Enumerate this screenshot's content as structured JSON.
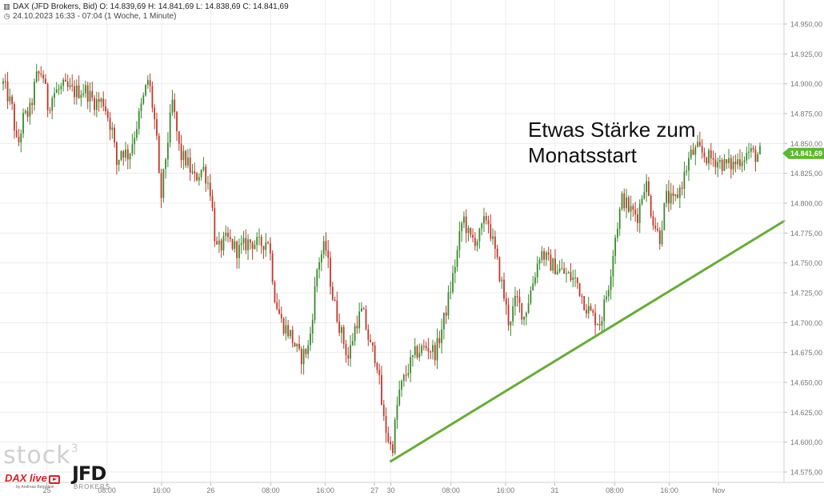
{
  "header": {
    "line1": "DAX (JFD Brokers, Bid)  O: 14.839,69  H: 14.841,69  L: 14.838,69  C: 14.841,69",
    "line2": "24.10.2023 16:33 - 07:04  (1 Woche, 1 Minute)",
    "line1_icon": "candlestick-icon",
    "line2_icon": "clock-icon"
  },
  "annotation": {
    "line1": "Etwas Stärke zum",
    "line2": "Monatsstart"
  },
  "branding": {
    "stock3": "stock",
    "stock3_sup": "3",
    "daxlive": "DAX live",
    "daxlive_sub": "by Andreas Bernstein",
    "jfd": "JFD",
    "jfd_sub": "BROKERS"
  },
  "colors": {
    "up": "#3a8a2e",
    "down": "#c0392b",
    "trendline": "#6aaa3a",
    "price_badge": "#5cb82e",
    "grid": "#ececec"
  },
  "chart_data": {
    "type": "candlestick",
    "title": "DAX (JFD Brokers, Bid)",
    "interval": "1 Minute",
    "period": "1 Woche",
    "last_price": "14.841,69",
    "ylim": [
      14570,
      14960
    ],
    "y_ticks": [
      {
        "value": 14575,
        "label": "14.575,00"
      },
      {
        "value": 14600,
        "label": "14.600,00"
      },
      {
        "value": 14625,
        "label": "14.625,00"
      },
      {
        "value": 14650,
        "label": "14.650,00"
      },
      {
        "value": 14675,
        "label": "14.675,00"
      },
      {
        "value": 14700,
        "label": "14.700,00"
      },
      {
        "value": 14725,
        "label": "14.725,00"
      },
      {
        "value": 14750,
        "label": "14.750,00"
      },
      {
        "value": 14775,
        "label": "14.775,00"
      },
      {
        "value": 14800,
        "label": "14.800,00"
      },
      {
        "value": 14825,
        "label": "14.825,00"
      },
      {
        "value": 14850,
        "label": "14.850,00"
      },
      {
        "value": 14875,
        "label": "14.875,00"
      },
      {
        "value": 14900,
        "label": "14.900,00"
      },
      {
        "value": 14925,
        "label": "14.925,00"
      },
      {
        "value": 14950,
        "label": "14.950,00"
      }
    ],
    "x_ticks": [
      {
        "t": 4,
        "label": "25"
      },
      {
        "t": 9.5,
        "label": "08:00"
      },
      {
        "t": 14.5,
        "label": "16:00"
      },
      {
        "t": 19,
        "label": "26"
      },
      {
        "t": 24.5,
        "label": "08:00"
      },
      {
        "t": 29.5,
        "label": "16:00"
      },
      {
        "t": 34,
        "label": "27"
      },
      {
        "t": 35.5,
        "label": "30"
      },
      {
        "t": 41,
        "label": "08:00"
      },
      {
        "t": 46,
        "label": "16:00"
      },
      {
        "t": 50.5,
        "label": "31"
      },
      {
        "t": 56,
        "label": "08:00"
      },
      {
        "t": 61,
        "label": "16:00"
      },
      {
        "t": 65.5,
        "label": "Nov"
      }
    ],
    "x_range": [
      0,
      71.5
    ],
    "path": [
      [
        0,
        14900
      ],
      [
        0.8,
        14880
      ],
      [
        1.3,
        14845
      ],
      [
        1.8,
        14870
      ],
      [
        2.5,
        14878
      ],
      [
        3,
        14905
      ],
      [
        3.6,
        14910
      ],
      [
        4.1,
        14880
      ],
      [
        4.6,
        14892
      ],
      [
        5.5,
        14897
      ],
      [
        6.5,
        14893
      ],
      [
        7.5,
        14895
      ],
      [
        8.3,
        14885
      ],
      [
        9.2,
        14885
      ],
      [
        10,
        14860
      ],
      [
        10.4,
        14832
      ],
      [
        10.8,
        14845
      ],
      [
        11.5,
        14840
      ],
      [
        12.5,
        14875
      ],
      [
        13.3,
        14905
      ],
      [
        14,
        14860
      ],
      [
        14.4,
        14800
      ],
      [
        14.9,
        14840
      ],
      [
        15.5,
        14885
      ],
      [
        16.2,
        14840
      ],
      [
        16.8,
        14835
      ],
      [
        17.5,
        14820
      ],
      [
        18.3,
        14830
      ],
      [
        19,
        14810
      ],
      [
        19.4,
        14770
      ],
      [
        19.6,
        14760
      ],
      [
        20.5,
        14770
      ],
      [
        21.5,
        14760
      ],
      [
        22.5,
        14768
      ],
      [
        23.5,
        14765
      ],
      [
        24.3,
        14770
      ],
      [
        24.9,
        14720
      ],
      [
        25.5,
        14700
      ],
      [
        26.3,
        14690
      ],
      [
        27.2,
        14670
      ],
      [
        28,
        14680
      ],
      [
        28.8,
        14750
      ],
      [
        29.5,
        14765
      ],
      [
        30.2,
        14720
      ],
      [
        31,
        14690
      ],
      [
        31.6,
        14670
      ],
      [
        32.3,
        14700
      ],
      [
        32.9,
        14710
      ],
      [
        33.6,
        14680
      ],
      [
        34.2,
        14670
      ],
      [
        34.8,
        14620
      ],
      [
        35.2,
        14605
      ],
      [
        35.6,
        14592
      ],
      [
        36.2,
        14640
      ],
      [
        37,
        14660
      ],
      [
        37.8,
        14675
      ],
      [
        38.8,
        14680
      ],
      [
        39.6,
        14675
      ],
      [
        40.3,
        14700
      ],
      [
        41,
        14730
      ],
      [
        41.6,
        14760
      ],
      [
        42.1,
        14790
      ],
      [
        42.7,
        14770
      ],
      [
        43.5,
        14770
      ],
      [
        44.3,
        14790
      ],
      [
        45,
        14760
      ],
      [
        45.7,
        14730
      ],
      [
        46.3,
        14700
      ],
      [
        47,
        14720
      ],
      [
        47.7,
        14705
      ],
      [
        48.4,
        14730
      ],
      [
        49.2,
        14760
      ],
      [
        50,
        14750
      ],
      [
        50.8,
        14745
      ],
      [
        51.6,
        14740
      ],
      [
        52.5,
        14735
      ],
      [
        53.3,
        14715
      ],
      [
        54,
        14705
      ],
      [
        54.7,
        14700
      ],
      [
        55.5,
        14735
      ],
      [
        56,
        14770
      ],
      [
        56.7,
        14805
      ],
      [
        57.3,
        14795
      ],
      [
        58.1,
        14790
      ],
      [
        58.8,
        14820
      ],
      [
        59.4,
        14790
      ],
      [
        60.1,
        14770
      ],
      [
        60.7,
        14805
      ],
      [
        61.4,
        14800
      ],
      [
        62.1,
        14815
      ],
      [
        62.9,
        14840
      ],
      [
        63.6,
        14845
      ],
      [
        64.5,
        14838
      ],
      [
        65.3,
        14836
      ],
      [
        66.1,
        14832
      ],
      [
        66.8,
        14832
      ],
      [
        67.6,
        14838
      ],
      [
        68.3,
        14843
      ],
      [
        68.9,
        14840
      ],
      [
        69.3,
        14841.69
      ]
    ],
    "trendline": [
      [
        35.5,
        14584
      ],
      [
        71.5,
        14785
      ]
    ]
  }
}
